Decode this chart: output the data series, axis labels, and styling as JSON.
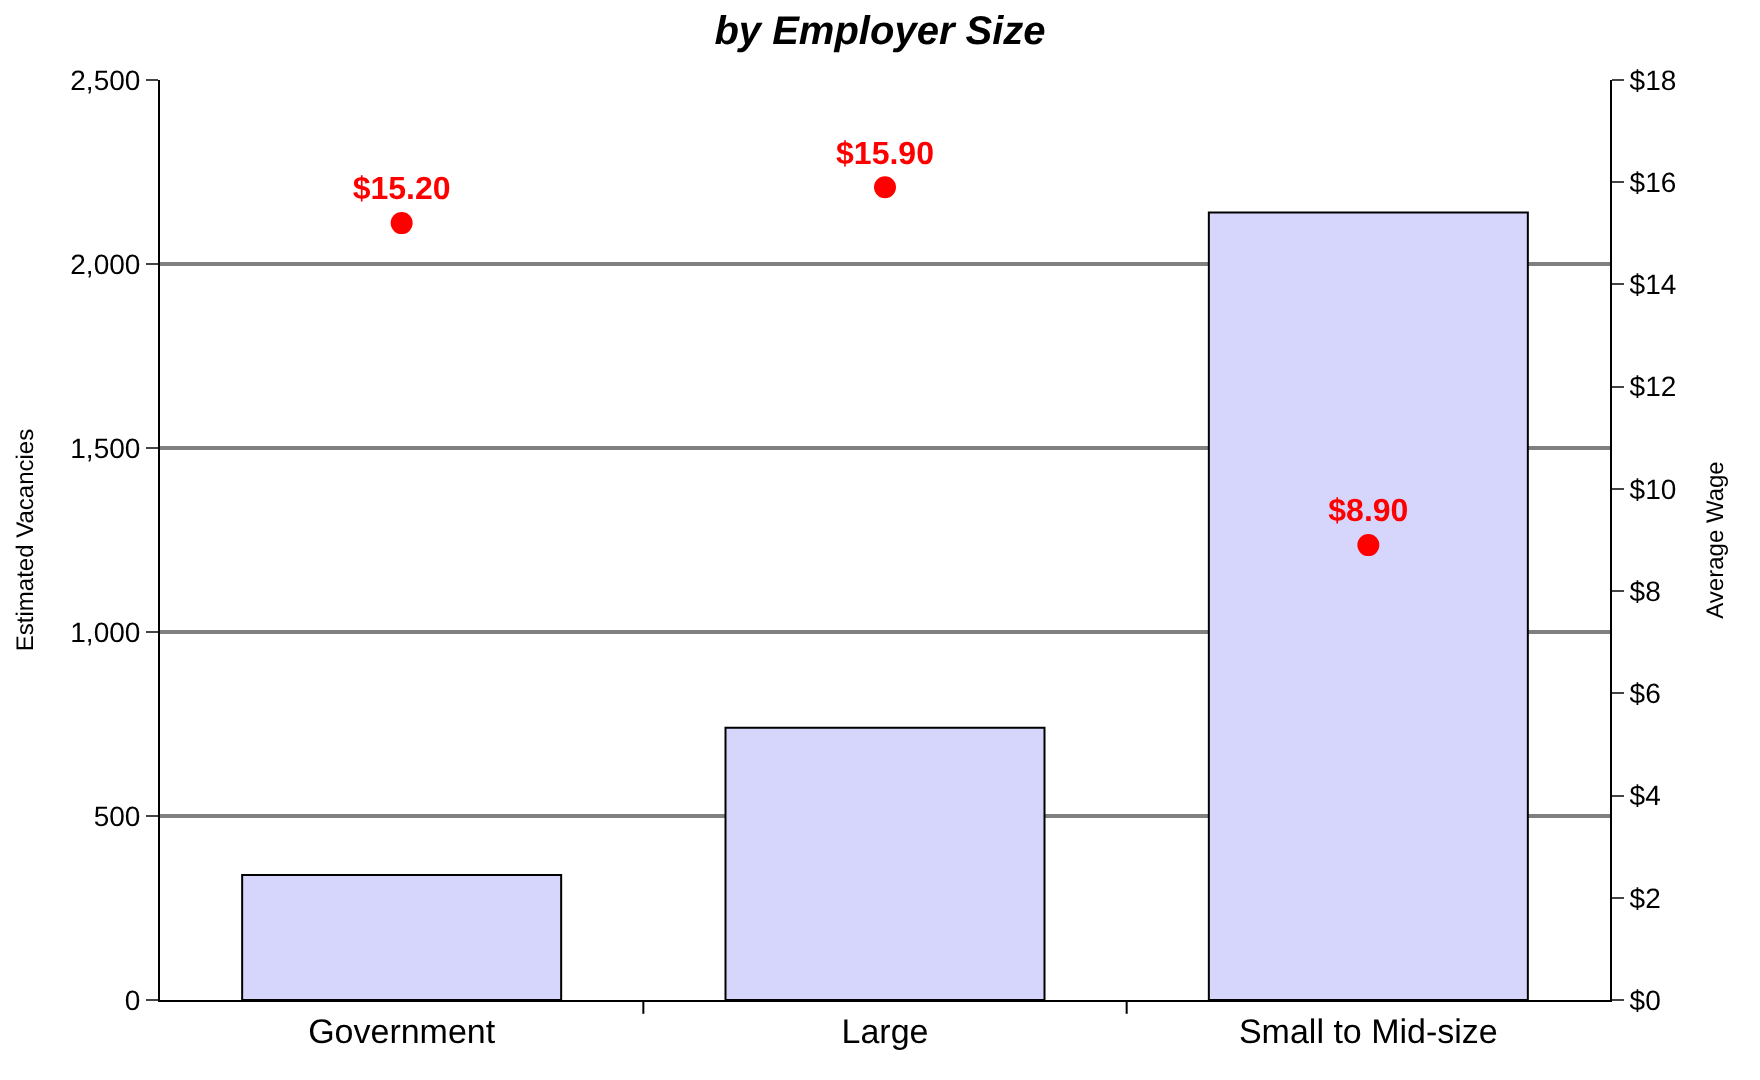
{
  "chart_data": {
    "type": "bar",
    "title": "by Employer Size",
    "ylabel": "Estimated Vacancies",
    "y2label": "Average Wage",
    "categories": [
      "Government",
      "Large",
      "Small to Mid-size"
    ],
    "series": [
      {
        "color": "#d6d6fc",
        "values": [
          340,
          740,
          2140
        ]
      },
      {
        "type": "scatter",
        "axis": "y2",
        "color": "#ff0000",
        "values": [
          15.2,
          15.9,
          8.9
        ],
        "value_labels": [
          "$15.20",
          "$15.90",
          "$8.90"
        ],
        "marker": "circle"
      }
    ],
    "ylim": [
      0,
      2500
    ],
    "yticks": [
      0,
      {
        "value": 500,
        "label": "500"
      },
      {
        "value": 1000,
        "label": "1,000"
      },
      {
        "value": 1500,
        "label": "1,500"
      },
      {
        "value": 2000,
        "label": "2,000"
      },
      {
        "value": 2500,
        "label": "2,500"
      }
    ],
    "y2lim": [
      0,
      18
    ],
    "y2ticks": [
      {
        "value": 0,
        "label": "$0"
      },
      {
        "value": 2,
        "label": "$2"
      },
      {
        "value": 4,
        "label": "$4"
      },
      {
        "value": 6,
        "label": "$6"
      },
      {
        "value": 8,
        "label": "$8"
      },
      {
        "value": 10,
        "label": "$10"
      },
      {
        "value": 12,
        "label": "$12"
      },
      {
        "value": 14,
        "label": "$14"
      },
      {
        "value": 16,
        "label": "$16"
      },
      {
        "value": 18,
        "label": "$18"
      }
    ],
    "grid": "y"
  }
}
